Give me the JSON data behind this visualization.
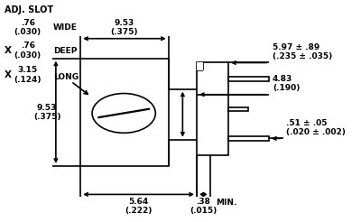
{
  "bg_color": "#ffffff",
  "line_color": "#000000",
  "figsize": [
    4.0,
    2.46
  ],
  "dpi": 100,
  "lw": 1.2,
  "fs": 6.5,
  "adj_slot": "ADJ. SLOT",
  "wide_text": ".76\n(.030)",
  "wide_label": "WIDE",
  "deep_text": ".76\n(.030)",
  "deep_label": "DEEP",
  "long_text": "3.15\n(.124)",
  "long_label": "LONG",
  "dim_953_top": "9.53\n(.375)",
  "dim_953_left": "9.53\n(.375)",
  "dim_564": "5.64\n(.222)",
  "dim_597": "5.97 ± .89\n(.235 ± .035)",
  "dim_483": "4.83\n(.190)",
  "dim_051": ".51 ± .05\n(.020 ± .002)",
  "dim_038": ".38\n(.015)",
  "min_label": "MIN.",
  "x_label": "X"
}
